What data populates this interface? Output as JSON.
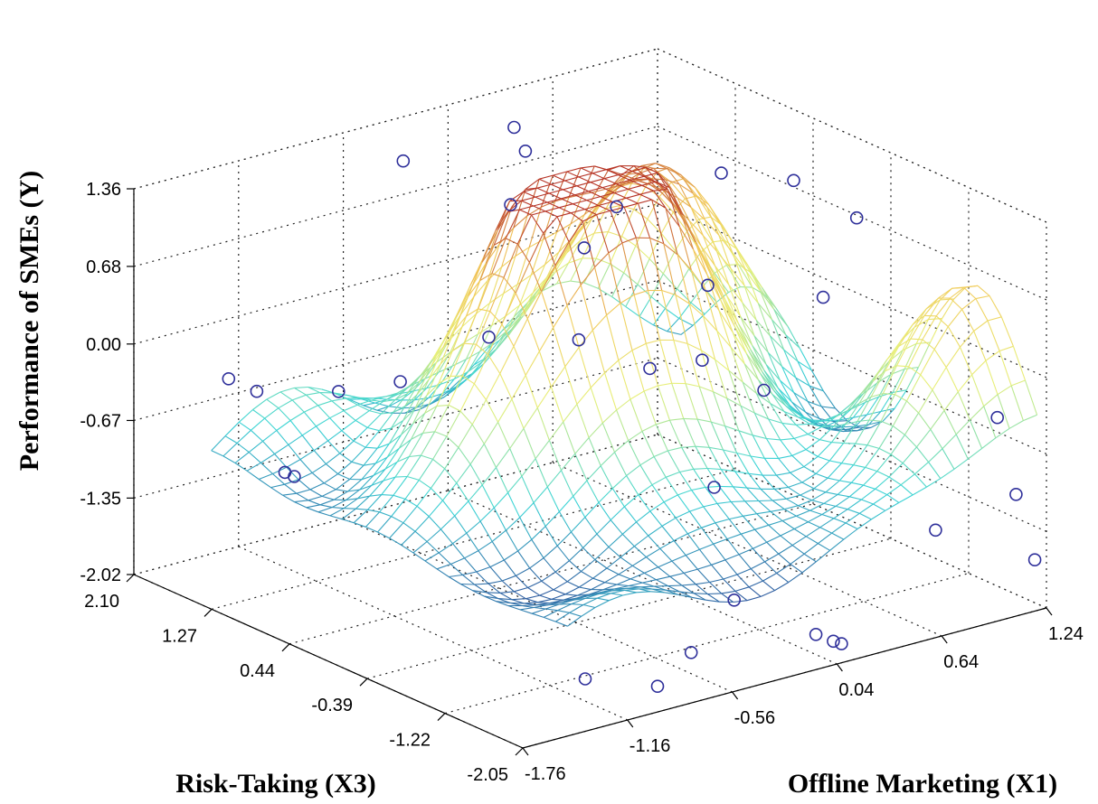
{
  "chart_data": {
    "type": "surface3d",
    "title": "",
    "zlabel": "Performance of SMEs (Y)",
    "xlabel": "Offline Marketing (X1)",
    "ylabel": "Risk-Taking (X3)",
    "z_ticks": [
      "1.36",
      "0.68",
      "0.00",
      "-0.67",
      "-1.35",
      "-2.02"
    ],
    "x_ticks": [
      "-1.76",
      "-1.16",
      "-0.56",
      "0.04",
      "0.64",
      "1.24"
    ],
    "y_ticks": [
      "-2.05",
      "-1.22",
      "-0.39",
      "0.44",
      "1.27",
      "2.10"
    ],
    "xlim": [
      -1.76,
      1.24
    ],
    "ylim": [
      -2.05,
      2.1
    ],
    "zlim": [
      -2.02,
      1.36
    ],
    "grid": true,
    "colormap": [
      "#2b2f8c",
      "#3bd4d6",
      "#e8f07a",
      "#f2c85a",
      "#b22a22"
    ],
    "surface_peaks": [
      {
        "x": 0.0,
        "y": 0.3,
        "z": 1.25
      },
      {
        "x": 0.65,
        "y": 1.1,
        "z": 0.95
      },
      {
        "x": -0.5,
        "y": 0.2,
        "z": 0.55
      },
      {
        "x": 0.2,
        "y": -0.9,
        "z": -0.9
      },
      {
        "x": 1.2,
        "y": -1.4,
        "z": 0.55
      },
      {
        "x": -0.9,
        "y": 1.7,
        "z": -0.7
      }
    ],
    "observations": [
      {
        "x": -0.7,
        "y": 1.2,
        "z": 1.5
      },
      {
        "x": 0.0,
        "y": 1.2,
        "z": 1.3
      },
      {
        "x": 0.15,
        "y": 1.6,
        "z": 1.3
      },
      {
        "x": -0.3,
        "y": 0.8,
        "z": 1.1
      },
      {
        "x": 0.2,
        "y": 0.6,
        "z": 0.95
      },
      {
        "x": 0.8,
        "y": 0.6,
        "z": 1.0
      },
      {
        "x": 1.0,
        "y": 0.2,
        "z": 1.0
      },
      {
        "x": -0.2,
        "y": 0.2,
        "z": 0.9
      },
      {
        "x": 0.4,
        "y": 0.0,
        "z": 0.4
      },
      {
        "x": -0.5,
        "y": -0.3,
        "z": 0.4
      },
      {
        "x": -0.8,
        "y": 0.1,
        "z": 0.4
      },
      {
        "x": 0.9,
        "y": -0.3,
        "z": 0.2
      },
      {
        "x": 1.2,
        "y": -0.1,
        "z": 0.7
      },
      {
        "x": -0.2,
        "y": -0.5,
        "z": 0.1
      },
      {
        "x": 0.1,
        "y": -0.5,
        "z": 0.05
      },
      {
        "x": -1.2,
        "y": 0.3,
        "z": 0.1
      },
      {
        "x": -1.5,
        "y": 0.4,
        "z": 0.1
      },
      {
        "x": -1.7,
        "y": 1.2,
        "z": 0.0
      },
      {
        "x": -1.7,
        "y": 0.9,
        "z": 0.0
      },
      {
        "x": -1.7,
        "y": 0.6,
        "z": -0.6
      },
      {
        "x": -1.7,
        "y": 0.5,
        "z": -0.6
      },
      {
        "x": 0.4,
        "y": -0.6,
        "z": -0.3
      },
      {
        "x": -0.1,
        "y": -1.0,
        "z": -0.8
      },
      {
        "x": 1.2,
        "y": -1.6,
        "z": -0.5
      },
      {
        "x": 1.2,
        "y": -1.8,
        "z": -1.1
      },
      {
        "x": 0.9,
        "y": -1.5,
        "z": -1.4
      },
      {
        "x": -0.2,
        "y": -1.4,
        "z": -1.6
      },
      {
        "x": 0.0,
        "y": -1.9,
        "z": -1.8
      },
      {
        "x": -0.5,
        "y": -1.5,
        "z": -1.9
      },
      {
        "x": 0.1,
        "y": -1.9,
        "z": -1.9
      },
      {
        "x": 0.2,
        "y": -1.8,
        "z": -2.0
      },
      {
        "x": -1.0,
        "y": -1.3,
        "z": -2.0
      },
      {
        "x": 1.2,
        "y": -2.0,
        "z": -1.6
      },
      {
        "x": -0.8,
        "y": -1.7,
        "z": -2.0
      }
    ]
  }
}
